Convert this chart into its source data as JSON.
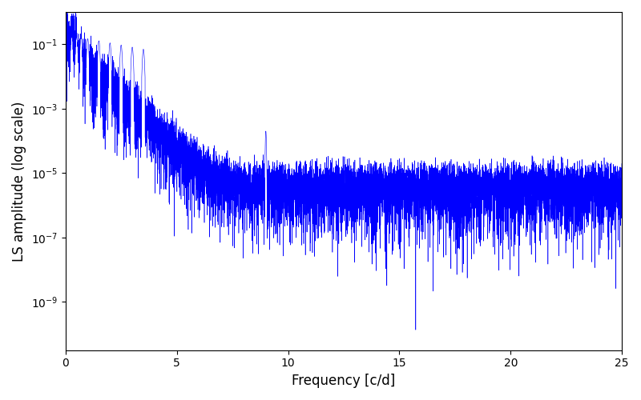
{
  "xlabel": "Frequency [c/d]",
  "ylabel": "LS amplitude (log scale)",
  "line_color": "#0000ff",
  "xlim": [
    0,
    25
  ],
  "ylim_log_min": -10.5,
  "ylim_log_max": 0,
  "freq_max": 25.0,
  "n_points": 10000,
  "seed": 12345,
  "figsize": [
    8.0,
    5.0
  ],
  "dpi": 100,
  "background_color": "#ffffff"
}
